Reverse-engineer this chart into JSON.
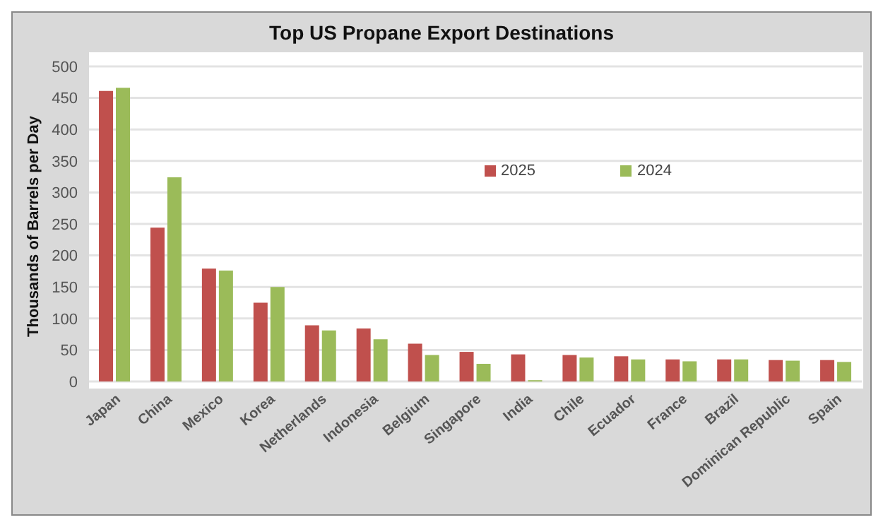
{
  "chart_data": {
    "type": "bar",
    "title": "Top US Propane Export Destinations",
    "ylabel": "Thousands of Barrels per Day",
    "categories": [
      "Japan",
      "China",
      "Mexico",
      "Korea",
      "Netherlands",
      "Indonesia",
      "Belgium",
      "Singapore",
      "India",
      "Chile",
      "Ecuador",
      "France",
      "Brazil",
      "Dominican Republic",
      "Spain"
    ],
    "series": [
      {
        "name": "2025",
        "color": "#c0504d",
        "values": [
          461,
          244,
          179,
          125,
          89,
          84,
          60,
          47,
          43,
          42,
          40,
          35,
          35,
          34,
          34
        ]
      },
      {
        "name": "2024",
        "color": "#9bbb59",
        "values": [
          466,
          324,
          176,
          150,
          81,
          67,
          42,
          28,
          2,
          38,
          35,
          32,
          35,
          33,
          31
        ]
      }
    ],
    "ylim": [
      0,
      500
    ],
    "yticks": [
      0,
      50,
      100,
      150,
      200,
      250,
      300,
      350,
      400,
      450,
      500
    ],
    "grid": "y",
    "legend": "top"
  }
}
